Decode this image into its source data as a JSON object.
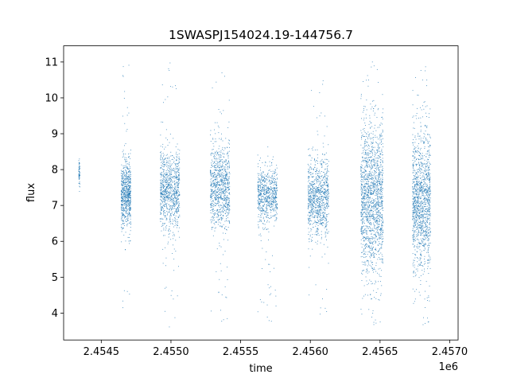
{
  "chart_data": {
    "type": "scatter",
    "title": "1SWASPJ154024.19-144756.7",
    "xlabel": "time",
    "ylabel": "flux",
    "x_offset_label": "1e6",
    "xlim": [
      2454230,
      2457060
    ],
    "ylim": [
      3.25,
      11.45
    ],
    "x_ticks": [
      2454500,
      2455000,
      2455500,
      2456000,
      2456500,
      2457000
    ],
    "x_tick_labels": [
      "2.4545",
      "2.4550",
      "2.4555",
      "2.4560",
      "2.4565",
      "2.4570"
    ],
    "y_ticks": [
      4,
      5,
      6,
      7,
      8,
      9,
      10,
      11
    ],
    "y_tick_labels": [
      "4",
      "5",
      "6",
      "7",
      "8",
      "9",
      "10",
      "11"
    ],
    "grid": false,
    "marker_color": "#1f77b4",
    "series": [
      {
        "clusters": [
          {
            "x_range": [
              2454335,
              2454345
            ],
            "y_center": 7.9,
            "y_spread": 0.2,
            "y_range": [
              7.4,
              8.4
            ],
            "points": 60
          },
          {
            "x_range": [
              2454640,
              2454710
            ],
            "y_center": 7.3,
            "y_spread": 0.45,
            "y_range": [
              3.9,
              11.1
            ],
            "points": 700
          },
          {
            "x_range": [
              2454920,
              2455060
            ],
            "y_center": 7.4,
            "y_spread": 0.55,
            "y_range": [
              3.6,
              11.0
            ],
            "points": 900
          },
          {
            "x_range": [
              2455280,
              2455420
            ],
            "y_center": 7.5,
            "y_spread": 0.55,
            "y_range": [
              3.7,
              10.9
            ],
            "points": 900
          },
          {
            "x_range": [
              2455620,
              2455760
            ],
            "y_center": 7.3,
            "y_spread": 0.4,
            "y_range": [
              3.7,
              8.7
            ],
            "points": 700
          },
          {
            "x_range": [
              2455980,
              2456130
            ],
            "y_center": 7.2,
            "y_spread": 0.55,
            "y_range": [
              3.9,
              10.6
            ],
            "points": 900
          },
          {
            "x_range": [
              2456360,
              2456520
            ],
            "y_center": 7.2,
            "y_spread": 1.0,
            "y_range": [
              3.6,
              11.1
            ],
            "points": 1600
          },
          {
            "x_range": [
              2456730,
              2456860
            ],
            "y_center": 7.1,
            "y_spread": 0.95,
            "y_range": [
              3.6,
              11.0
            ],
            "points": 1300
          }
        ]
      }
    ]
  }
}
